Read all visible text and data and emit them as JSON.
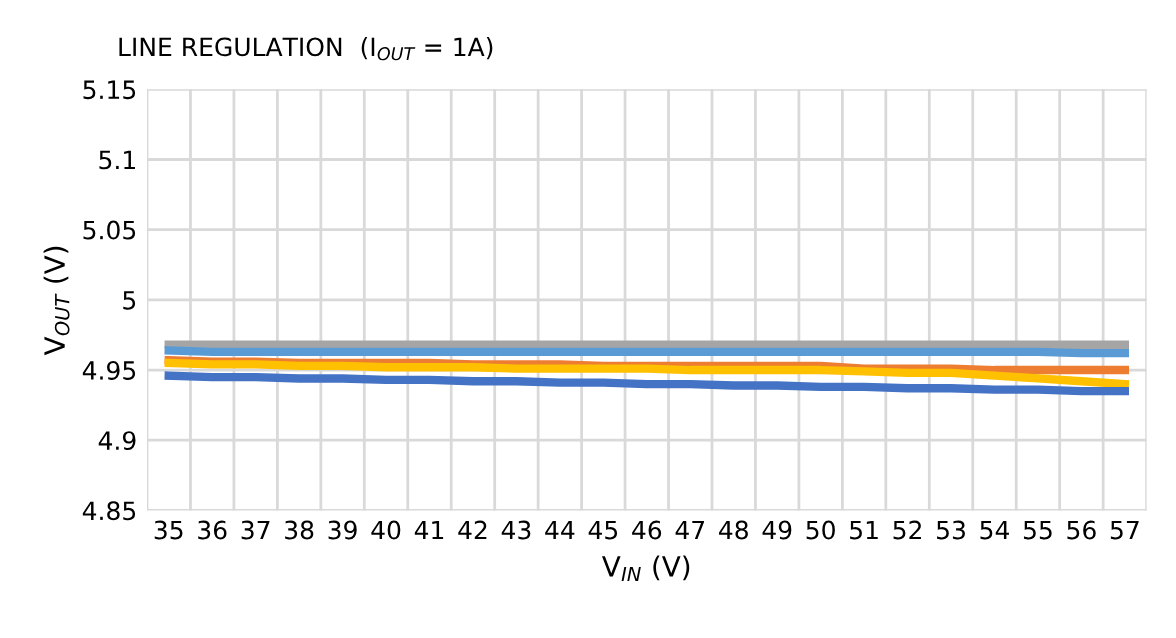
{
  "chart_data": {
    "type": "line",
    "title": "LINE REGULATION  (I$_{OUT}$ = 1A)",
    "xlabel": "V$_{IN}$ (V)",
    "ylabel": "V$_{OUT}$ (V)",
    "categories": [
      "35",
      "36",
      "37",
      "38",
      "39",
      "40",
      "41",
      "42",
      "43",
      "44",
      "45",
      "46",
      "47",
      "48",
      "49",
      "50",
      "51",
      "52",
      "53",
      "54",
      "55",
      "56",
      "57"
    ],
    "series": [
      {
        "color": "#a5a5a5",
        "values": [
          4.968,
          4.968,
          4.968,
          4.968,
          4.968,
          4.968,
          4.968,
          4.968,
          4.968,
          4.968,
          4.968,
          4.968,
          4.968,
          4.968,
          4.968,
          4.968,
          4.968,
          4.968,
          4.968,
          4.968,
          4.968,
          4.968,
          4.968
        ]
      },
      {
        "color": "#5b9bd5",
        "values": [
          4.964,
          4.963,
          4.963,
          4.963,
          4.963,
          4.963,
          4.963,
          4.963,
          4.963,
          4.963,
          4.963,
          4.963,
          4.963,
          4.963,
          4.963,
          4.963,
          4.963,
          4.963,
          4.963,
          4.963,
          4.963,
          4.962,
          4.962
        ]
      },
      {
        "color": "#ed7d31",
        "values": [
          4.957,
          4.956,
          4.956,
          4.955,
          4.955,
          4.955,
          4.955,
          4.954,
          4.954,
          4.954,
          4.953,
          4.953,
          4.953,
          4.953,
          4.953,
          4.953,
          4.951,
          4.951,
          4.951,
          4.95,
          4.95,
          4.95,
          4.95
        ]
      },
      {
        "color": "#ffc000",
        "values": [
          4.955,
          4.954,
          4.954,
          4.953,
          4.953,
          4.952,
          4.952,
          4.952,
          4.951,
          4.951,
          4.951,
          4.951,
          4.95,
          4.95,
          4.95,
          4.95,
          4.949,
          4.948,
          4.948,
          4.946,
          4.944,
          4.942,
          4.94
        ]
      },
      {
        "color": "#4472c4",
        "values": [
          4.946,
          4.945,
          4.945,
          4.944,
          4.944,
          4.943,
          4.943,
          4.942,
          4.942,
          4.941,
          4.941,
          4.94,
          4.94,
          4.939,
          4.939,
          4.938,
          4.938,
          4.937,
          4.937,
          4.936,
          4.936,
          4.935,
          4.935
        ]
      }
    ],
    "ylim": [
      4.85,
      5.15
    ],
    "yticks": [
      4.85,
      4.9,
      4.95,
      5,
      5.05,
      5.1,
      5.15
    ],
    "grid": true,
    "line_style": "solid",
    "marker": "none",
    "legend": false
  }
}
